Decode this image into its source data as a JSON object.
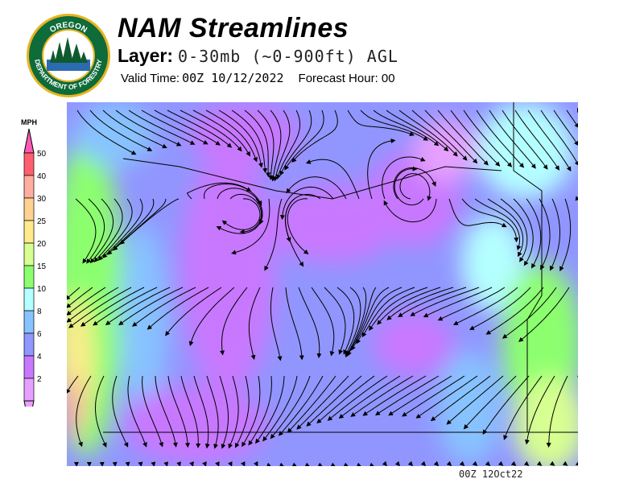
{
  "logo": {
    "top_text": "OREGON",
    "bottom_text": "DEPARTMENT OF FORESTRY"
  },
  "header": {
    "title": "NAM Streamlines",
    "layer_label": "Layer:",
    "layer_value": "0-30mb (~0-900ft) AGL",
    "valid_time_label": "Valid Time:",
    "valid_time_value": "00Z 10/12/2022",
    "forecast_hour_label": "Forecast Hour:",
    "forecast_hour_value": "00"
  },
  "legend": {
    "unit": "MPH",
    "bins": [
      {
        "label": "50",
        "color": "#ff5f6e"
      },
      {
        "label": "40",
        "color": "#ffada0"
      },
      {
        "label": "30",
        "color": "#ffd291"
      },
      {
        "label": "25",
        "color": "#ffeb8c"
      },
      {
        "label": "20",
        "color": "#d7ff91"
      },
      {
        "label": "15",
        "color": "#8cff6e"
      },
      {
        "label": "10",
        "color": "#b4ffff"
      },
      {
        "label": "8",
        "color": "#87c3ff"
      },
      {
        "label": "6",
        "color": "#9196ff"
      },
      {
        "label": "4",
        "color": "#c878ff"
      },
      {
        "label": "2",
        "color": "#e6a0ff"
      }
    ],
    "top_arrow_color": "#ff5ab4",
    "bottom_arrow_color": "#eaa0ff"
  },
  "footer": {
    "timestamp": "00Z 12Oct22"
  }
}
